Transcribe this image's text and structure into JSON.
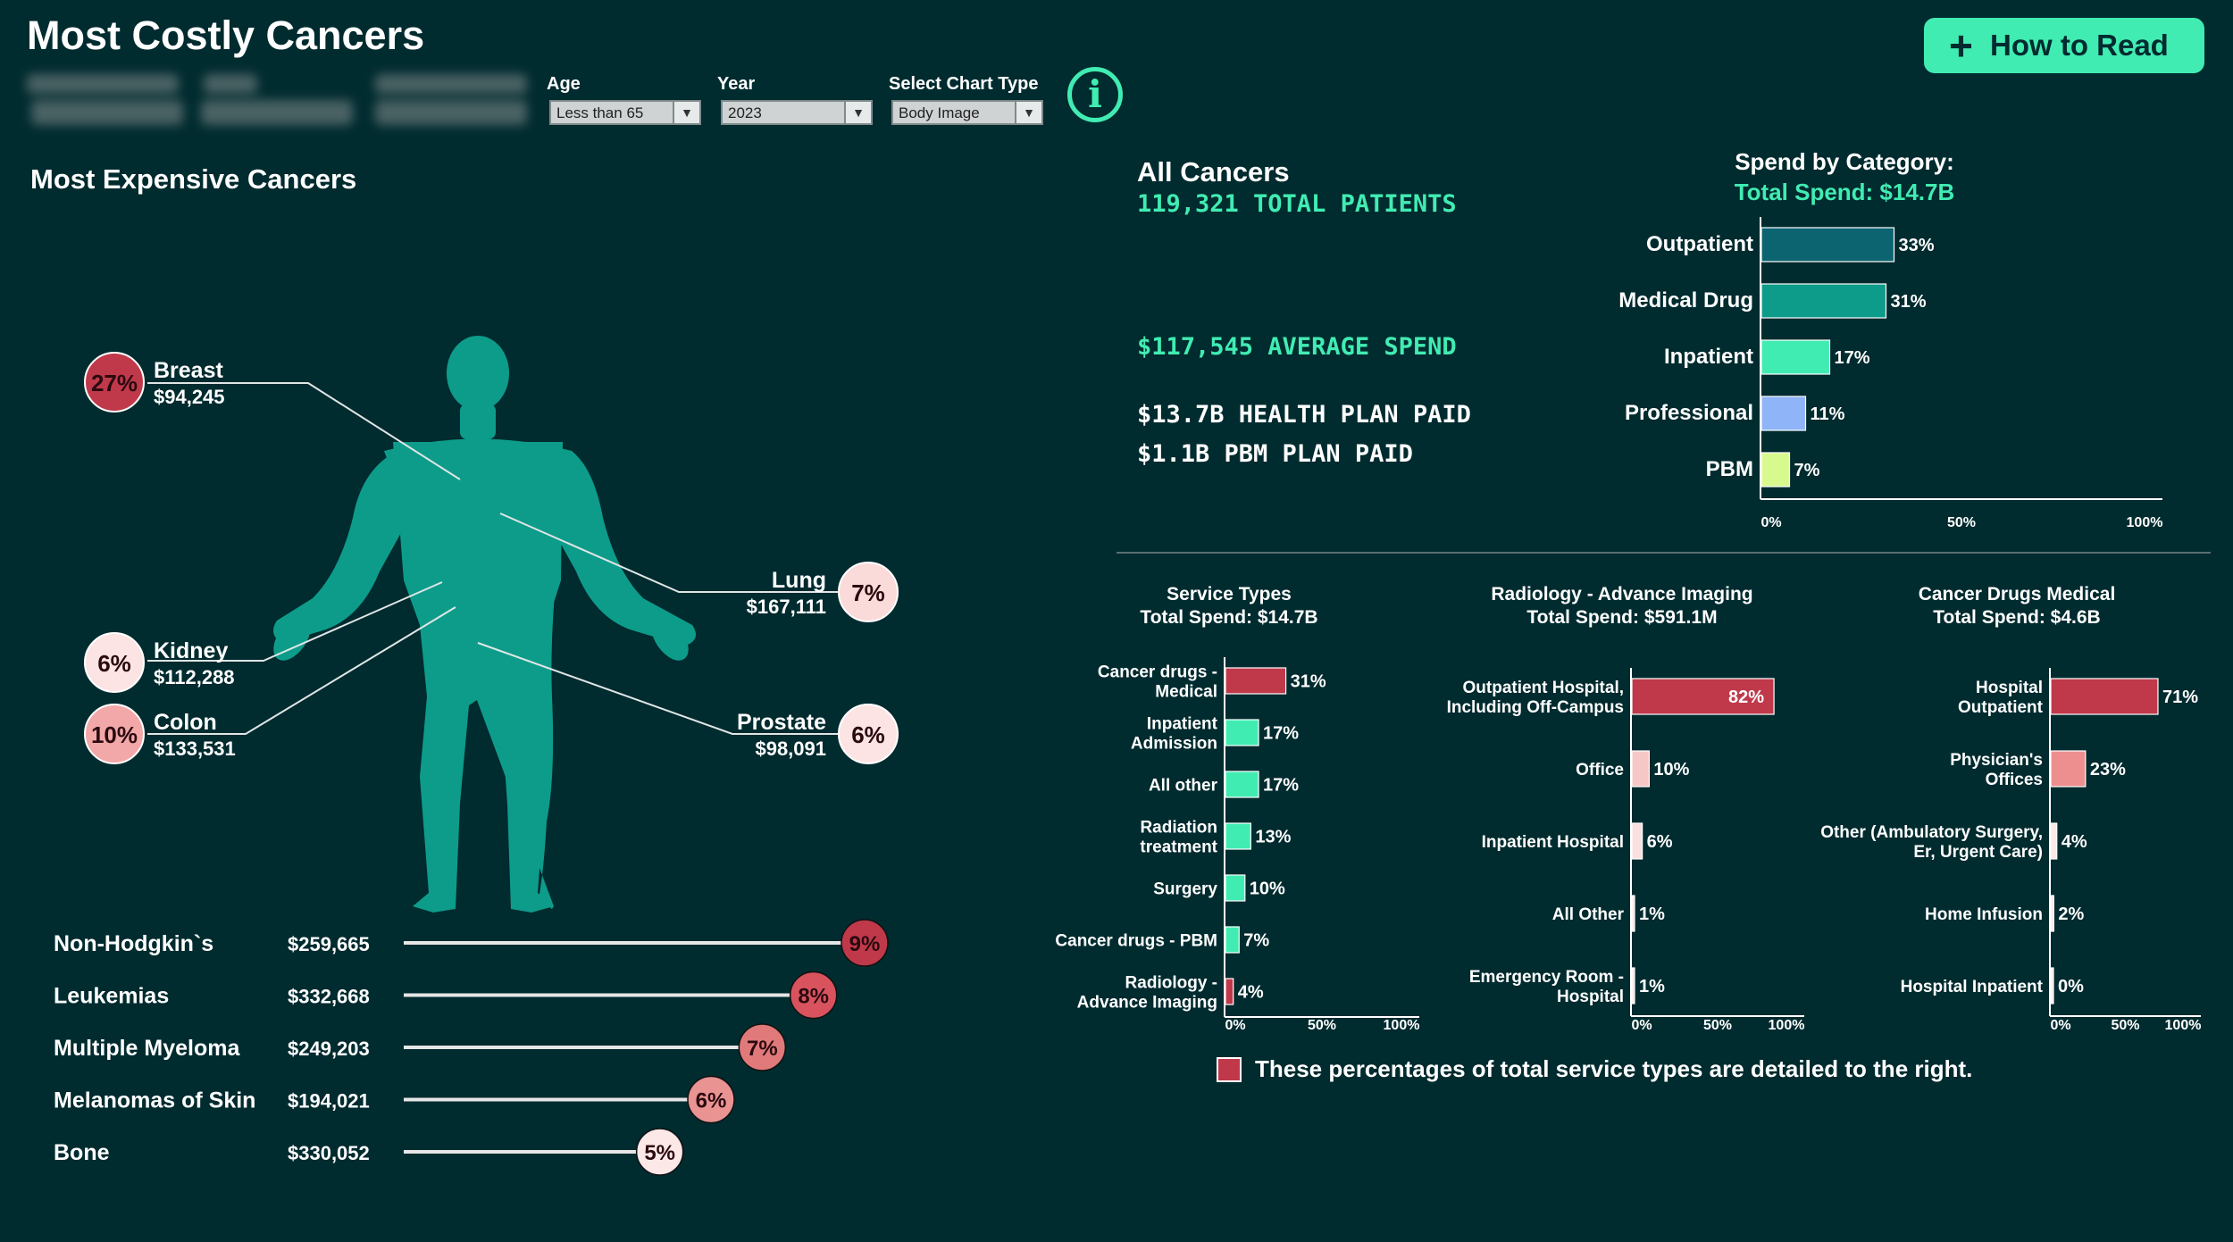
{
  "header": {
    "title": "Most Costly Cancers",
    "how_to_read": "How to Read",
    "info_glyph": "i",
    "filters": [
      {
        "label": "Age",
        "value": "Less than 65"
      },
      {
        "label": "Year",
        "value": "2023"
      },
      {
        "label": "Select Chart Type",
        "value": "Body Image"
      }
    ]
  },
  "left": {
    "section_title": "Most Expensive Cancers"
  },
  "summary": {
    "title": "All Cancers",
    "total_patients": "119,321 TOTAL PATIENTS",
    "average_spend": "$117,545 AVERAGE SPEND",
    "health_plan_paid": "$13.7B HEALTH PLAN PAID",
    "pbm_plan_paid": "$1.1B PBM PLAN PAID"
  },
  "legend": {
    "text": "These percentages of total service types are detailed to the right."
  },
  "colors": {
    "background": "#002b2f",
    "accent": "#41ecb2",
    "body": "#0d9c8a",
    "red": "#c0394b"
  },
  "chart_data": [
    {
      "type": "body-map",
      "cancers": [
        {
          "name": "Breast",
          "percent": "27%",
          "value": "$94,245",
          "color": "#c0394b"
        },
        {
          "name": "Lung",
          "percent": "7%",
          "value": "$167,111",
          "color": "#fbdada"
        },
        {
          "name": "Kidney",
          "percent": "6%",
          "value": "$112,288",
          "color": "#fce4e4"
        },
        {
          "name": "Colon",
          "percent": "10%",
          "value": "$133,531",
          "color": "#f2a8a8"
        },
        {
          "name": "Prostate",
          "percent": "6%",
          "value": "$98,091",
          "color": "#fce4e4"
        }
      ]
    },
    {
      "type": "lollipop",
      "xlim": [
        0,
        1
      ],
      "rows": [
        {
          "name": "Non-Hodgkin`s",
          "value": "$259,665",
          "percent": "9%",
          "fraction": 0.09,
          "color": "#c0394b"
        },
        {
          "name": "Leukemias",
          "value": "$332,668",
          "percent": "8%",
          "fraction": 0.08,
          "color": "#d9535f"
        },
        {
          "name": "Multiple Myeloma",
          "value": "$249,203",
          "percent": "7%",
          "fraction": 0.07,
          "color": "#e07a7a"
        },
        {
          "name": "Melanomas of Skin",
          "value": "$194,021",
          "percent": "6%",
          "fraction": 0.06,
          "color": "#e99393"
        },
        {
          "name": "Bone",
          "value": "$330,052",
          "percent": "5%",
          "fraction": 0.05,
          "color": "#fde8e8"
        }
      ]
    },
    {
      "type": "bar",
      "title": "Spend by Category:",
      "subtitle": "Total Spend: $14.7B",
      "ticks": [
        "0%",
        "50%",
        "100%"
      ],
      "xlim": [
        0,
        100
      ],
      "categories": [
        "Outpatient",
        "Medical Drug",
        "Inpatient",
        "Professional",
        "PBM"
      ],
      "values": [
        33,
        31,
        17,
        11,
        7
      ],
      "labels": [
        "33%",
        "31%",
        "17%",
        "11%",
        "7%"
      ],
      "colors": [
        "#0b6470",
        "#0d9c8a",
        "#41ecb2",
        "#8fb4f7",
        "#d8f98e"
      ]
    },
    {
      "type": "bar",
      "title": "Service Types",
      "subtitle": "Total Spend: $14.7B",
      "ticks": [
        "0%",
        "50%",
        "100%"
      ],
      "xlim": [
        0,
        100
      ],
      "categories": [
        "Cancer drugs - Medical",
        "Inpatient Admission",
        "All other",
        "Radiation treatment",
        "Surgery",
        "Cancer drugs - PBM",
        "Radiology - Advance Imaging"
      ],
      "values": [
        31,
        17,
        17,
        13,
        10,
        7,
        4
      ],
      "labels": [
        "31%",
        "17%",
        "17%",
        "13%",
        "10%",
        "7%",
        "4%"
      ],
      "colors": [
        "#c0394b",
        "#41ecb2",
        "#41ecb2",
        "#41ecb2",
        "#41ecb2",
        "#41ecb2",
        "#c0394b"
      ]
    },
    {
      "type": "bar",
      "title": "Radiology - Advance Imaging",
      "subtitle": "Total Spend:  $591.1M",
      "ticks": [
        "0%",
        "50%",
        "100%"
      ],
      "xlim": [
        0,
        100
      ],
      "categories": [
        "Outpatient Hospital, Including Off-Campus",
        "Office",
        "Inpatient Hospital",
        "All Other",
        "Emergency Room - Hospital"
      ],
      "values": [
        82,
        10,
        6,
        1,
        1
      ],
      "labels": [
        "82%",
        "10%",
        "6%",
        "1%",
        "1%"
      ],
      "colors": [
        "#c0394b",
        "#f6c7c7",
        "#fbe0e0",
        "#fde8e8",
        "#fde8e8"
      ]
    },
    {
      "type": "bar",
      "title": "Cancer Drugs Medical",
      "subtitle": "Total Spend: $4.6B",
      "ticks": [
        "0%",
        "50%",
        "100%"
      ],
      "xlim": [
        0,
        100
      ],
      "categories": [
        "Hospital Outpatient",
        "Physician's Offices",
        "Other (Ambulatory Surgery, Er, Urgent Care)",
        "Home Infusion",
        "Hospital Inpatient"
      ],
      "values": [
        71,
        23,
        4,
        2,
        0
      ],
      "labels": [
        "71%",
        "23%",
        "4%",
        "2%",
        "0%"
      ],
      "colors": [
        "#c0394b",
        "#ee8f8f",
        "#fde8e8",
        "#fde8e8",
        "#fde8e8"
      ]
    }
  ]
}
